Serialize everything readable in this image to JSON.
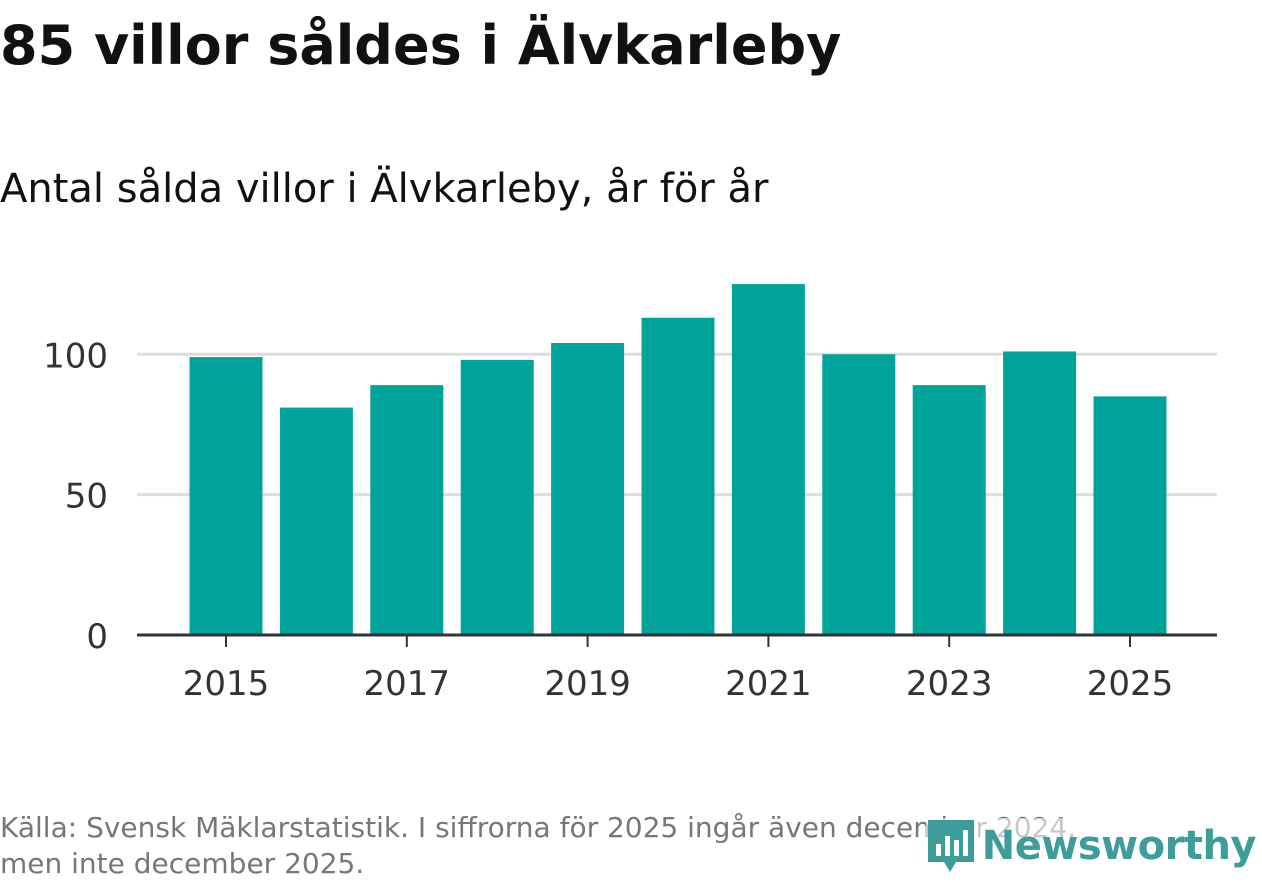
{
  "title": "85 villor såldes i Älvkarleby",
  "subtitle": "Antal sålda villor i Älvkarleby, år för år",
  "source_line1": "Källa: Svensk Mäklarstatistik. I siffrorna för 2025 ingår även december 2024,",
  "source_line2": "men inte december 2025.",
  "brand": "Newsworthy",
  "colors": {
    "bar": "#00a39a",
    "grid": "#dddddd",
    "axis": "#333333",
    "brand": "#3d9d9a"
  },
  "chart_data": {
    "type": "bar",
    "title": "85 villor såldes i Älvkarleby",
    "subtitle": "Antal sålda villor i Älvkarleby, år för år",
    "xlabel": "",
    "ylabel": "",
    "categories": [
      2015,
      2016,
      2017,
      2018,
      2019,
      2020,
      2021,
      2022,
      2023,
      2024,
      2025
    ],
    "values": [
      99,
      81,
      89,
      98,
      104,
      113,
      125,
      100,
      89,
      101,
      85
    ],
    "ylim": [
      0,
      135
    ],
    "yticks": [
      0,
      50,
      100
    ],
    "xtick_labels": [
      "2015",
      "2017",
      "2019",
      "2021",
      "2023",
      "2025"
    ],
    "grid": true,
    "legend": "none"
  }
}
